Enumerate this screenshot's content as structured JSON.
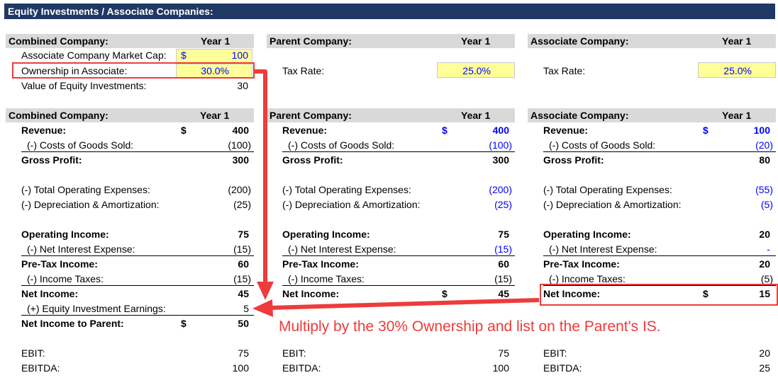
{
  "title": "Equity Investments / Associate Companies:",
  "year_label": "Year 1",
  "assumptions": {
    "combined": {
      "header": "Combined Company:",
      "market_cap_label": "Associate Company Market Cap:",
      "market_cap_currency": "$",
      "market_cap_value": "100",
      "ownership_label": "Ownership in Associate:",
      "ownership_value": "30.0%",
      "equity_value_label": "Value of Equity Investments:",
      "equity_value": "30"
    },
    "parent": {
      "header": "Parent Company:",
      "tax_label": "Tax Rate:",
      "tax_value": "25.0%"
    },
    "associate": {
      "header": "Associate Company:",
      "tax_label": "Tax Rate:",
      "tax_value": "25.0%"
    }
  },
  "income_statements": {
    "combined": {
      "header": "Combined Company:",
      "revenue_label": "Revenue:",
      "revenue_currency": "$",
      "revenue": "400",
      "cogs_label": "(-) Costs of Goods Sold:",
      "cogs": "(100)",
      "gross_profit_label": "Gross Profit:",
      "gross_profit": "300",
      "opex_label": "(-) Total Operating Expenses:",
      "opex": "(200)",
      "da_label": "(-) Depreciation & Amortization:",
      "da": "(25)",
      "op_income_label": "Operating Income:",
      "op_income": "75",
      "interest_label": "(-) Net Interest Expense:",
      "interest": "(15)",
      "pretax_label": "Pre-Tax Income:",
      "pretax": "60",
      "taxes_label": "(-) Income Taxes:",
      "taxes": "(15)",
      "net_income_label": "Net Income:",
      "net_income": "45",
      "equity_earnings_label": "(+) Equity Investment Earnings:",
      "equity_earnings": "5",
      "ni_parent_label": "Net Income to Parent:",
      "ni_parent_currency": "$",
      "ni_parent": "50",
      "ebit_label": "EBIT:",
      "ebit": "75",
      "ebitda_label": "EBITDA:",
      "ebitda": "100"
    },
    "parent": {
      "header": "Parent Company:",
      "revenue_label": "Revenue:",
      "revenue_currency": "$",
      "revenue": "400",
      "cogs_label": "(-) Costs of Goods Sold:",
      "cogs": "(100)",
      "gross_profit_label": "Gross Profit:",
      "gross_profit": "300",
      "opex_label": "(-) Total Operating Expenses:",
      "opex": "(200)",
      "da_label": "(-) Depreciation & Amortization:",
      "da": "(25)",
      "op_income_label": "Operating Income:",
      "op_income": "75",
      "interest_label": "(-) Net Interest Expense:",
      "interest": "(15)",
      "pretax_label": "Pre-Tax Income:",
      "pretax": "60",
      "taxes_label": "(-) Income Taxes:",
      "taxes": "(15)",
      "net_income_label": "Net Income:",
      "net_income_currency": "$",
      "net_income": "45",
      "ebit_label": "EBIT:",
      "ebit": "75",
      "ebitda_label": "EBITDA:",
      "ebitda": "100"
    },
    "associate": {
      "header": "Associate Company:",
      "revenue_label": "Revenue:",
      "revenue_currency": "$",
      "revenue": "100",
      "cogs_label": "(-) Costs of Goods Sold:",
      "cogs": "(20)",
      "gross_profit_label": "Gross Profit:",
      "gross_profit": "80",
      "opex_label": "(-) Total Operating Expenses:",
      "opex": "(55)",
      "da_label": "(-) Depreciation & Amortization:",
      "da": "(5)",
      "op_income_label": "Operating Income:",
      "op_income": "20",
      "interest_label": "(-) Net Interest Expense:",
      "interest": "-",
      "pretax_label": "Pre-Tax Income:",
      "pretax": "20",
      "taxes_label": "(-) Income Taxes:",
      "taxes": "(5)",
      "net_income_label": "Net Income:",
      "net_income_currency": "$",
      "net_income": "15",
      "ebit_label": "EBIT:",
      "ebit": "20",
      "ebitda_label": "EBITDA:",
      "ebitda": "25"
    }
  },
  "annotation": "Multiply by the 30% Ownership and list on the Parent's IS.",
  "colors": {
    "title_bar": "#1f3864",
    "header_gray": "#d9d9d9",
    "input_yellow": "#ffff99",
    "input_blue": "#0000ff",
    "annotation_red": "#ee3b3b"
  }
}
